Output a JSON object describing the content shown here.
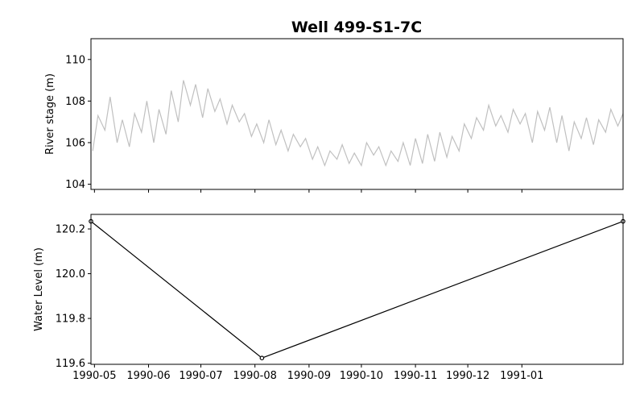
{
  "chart_data": [
    {
      "type": "line",
      "title": "Well 499-S1-7C",
      "xlabel": "",
      "ylabel": "River stage (m)",
      "ylim": [
        103.75,
        111.0
      ],
      "yticks": [
        104,
        106,
        108,
        110
      ],
      "xlim": [
        "1990-04-29",
        "1991-02-28"
      ],
      "x_tick_labels_shown": false,
      "grid": false,
      "series": [
        {
          "color": "#c0c0c0",
          "note_values": "Approximate daily river stage readings (jagged, high-frequency variation).",
          "x": [
            "1990-04-30",
            "1990-05-03",
            "1990-05-07",
            "1990-05-10",
            "1990-05-14",
            "1990-05-17",
            "1990-05-21",
            "1990-05-24",
            "1990-05-28",
            "1990-05-31",
            "1990-06-04",
            "1990-06-07",
            "1990-06-11",
            "1990-06-14",
            "1990-06-18",
            "1990-06-21",
            "1990-06-25",
            "1990-06-28",
            "1990-07-02",
            "1990-07-05",
            "1990-07-09",
            "1990-07-12",
            "1990-07-16",
            "1990-07-19",
            "1990-07-23",
            "1990-07-26",
            "1990-07-30",
            "1990-08-02",
            "1990-08-06",
            "1990-08-09",
            "1990-08-13",
            "1990-08-16",
            "1990-08-20",
            "1990-08-23",
            "1990-08-27",
            "1990-08-30",
            "1990-09-03",
            "1990-09-06",
            "1990-09-10",
            "1990-09-13",
            "1990-09-17",
            "1990-09-20",
            "1990-09-24",
            "1990-09-27",
            "1990-10-01",
            "1990-10-04",
            "1990-10-08",
            "1990-10-11",
            "1990-10-15",
            "1990-10-18",
            "1990-10-22",
            "1990-10-25",
            "1990-10-29",
            "1990-11-01",
            "1990-11-05",
            "1990-11-08",
            "1990-11-12",
            "1990-11-15",
            "1990-11-19",
            "1990-11-22",
            "1990-11-26",
            "1990-11-29",
            "1990-12-03",
            "1990-12-06",
            "1990-12-10",
            "1990-12-13",
            "1990-12-17",
            "1990-12-20",
            "1990-12-24",
            "1990-12-27",
            "1990-12-31",
            "1991-01-03",
            "1991-01-07",
            "1991-01-10",
            "1991-01-14",
            "1991-01-17",
            "1991-01-21",
            "1991-01-24",
            "1991-01-28",
            "1991-01-31",
            "1991-02-04",
            "1991-02-07",
            "1991-02-11",
            "1991-02-14",
            "1991-02-18",
            "1991-02-21",
            "1991-02-25",
            "1991-02-28"
          ],
          "y": [
            105.6,
            107.3,
            106.6,
            108.2,
            106.0,
            107.1,
            105.8,
            107.4,
            106.5,
            108.0,
            106.0,
            107.6,
            106.4,
            108.5,
            107.0,
            109.0,
            107.8,
            108.8,
            107.2,
            108.6,
            107.5,
            108.1,
            106.9,
            107.8,
            107.0,
            107.4,
            106.3,
            106.9,
            106.0,
            107.1,
            105.9,
            106.6,
            105.6,
            106.4,
            105.8,
            106.2,
            105.2,
            105.8,
            104.9,
            105.6,
            105.2,
            105.9,
            105.0,
            105.5,
            104.9,
            106.0,
            105.4,
            105.8,
            104.9,
            105.6,
            105.1,
            106.0,
            104.9,
            106.2,
            105.0,
            106.4,
            105.1,
            106.5,
            105.3,
            106.3,
            105.6,
            106.9,
            106.2,
            107.2,
            106.6,
            107.8,
            106.8,
            107.3,
            106.5,
            107.6,
            106.9,
            107.4,
            106.0,
            107.5,
            106.6,
            107.7,
            106.0,
            107.3,
            105.6,
            107.0,
            106.2,
            107.2,
            105.9,
            107.1,
            106.5,
            107.6,
            106.8,
            107.4
          ]
        }
      ]
    },
    {
      "type": "line",
      "title": "",
      "xlabel": "",
      "ylabel": "Water Level (m)",
      "ylim": [
        119.595,
        120.265
      ],
      "yticks": [
        119.6,
        119.8,
        120.0,
        120.2
      ],
      "xlim": [
        "1990-04-29",
        "1991-02-28"
      ],
      "x_tick_labels": [
        "1990-05",
        "1990-06",
        "1990-07",
        "1990-08",
        "1990-09",
        "1990-10",
        "1990-11",
        "1990-12",
        "1991-01"
      ],
      "grid": false,
      "series": [
        {
          "color": "#000000",
          "markers": true,
          "x": [
            "1990-04-29",
            "1990-08-05",
            "1991-02-28"
          ],
          "y": [
            120.234,
            119.623,
            120.234
          ]
        }
      ]
    }
  ]
}
